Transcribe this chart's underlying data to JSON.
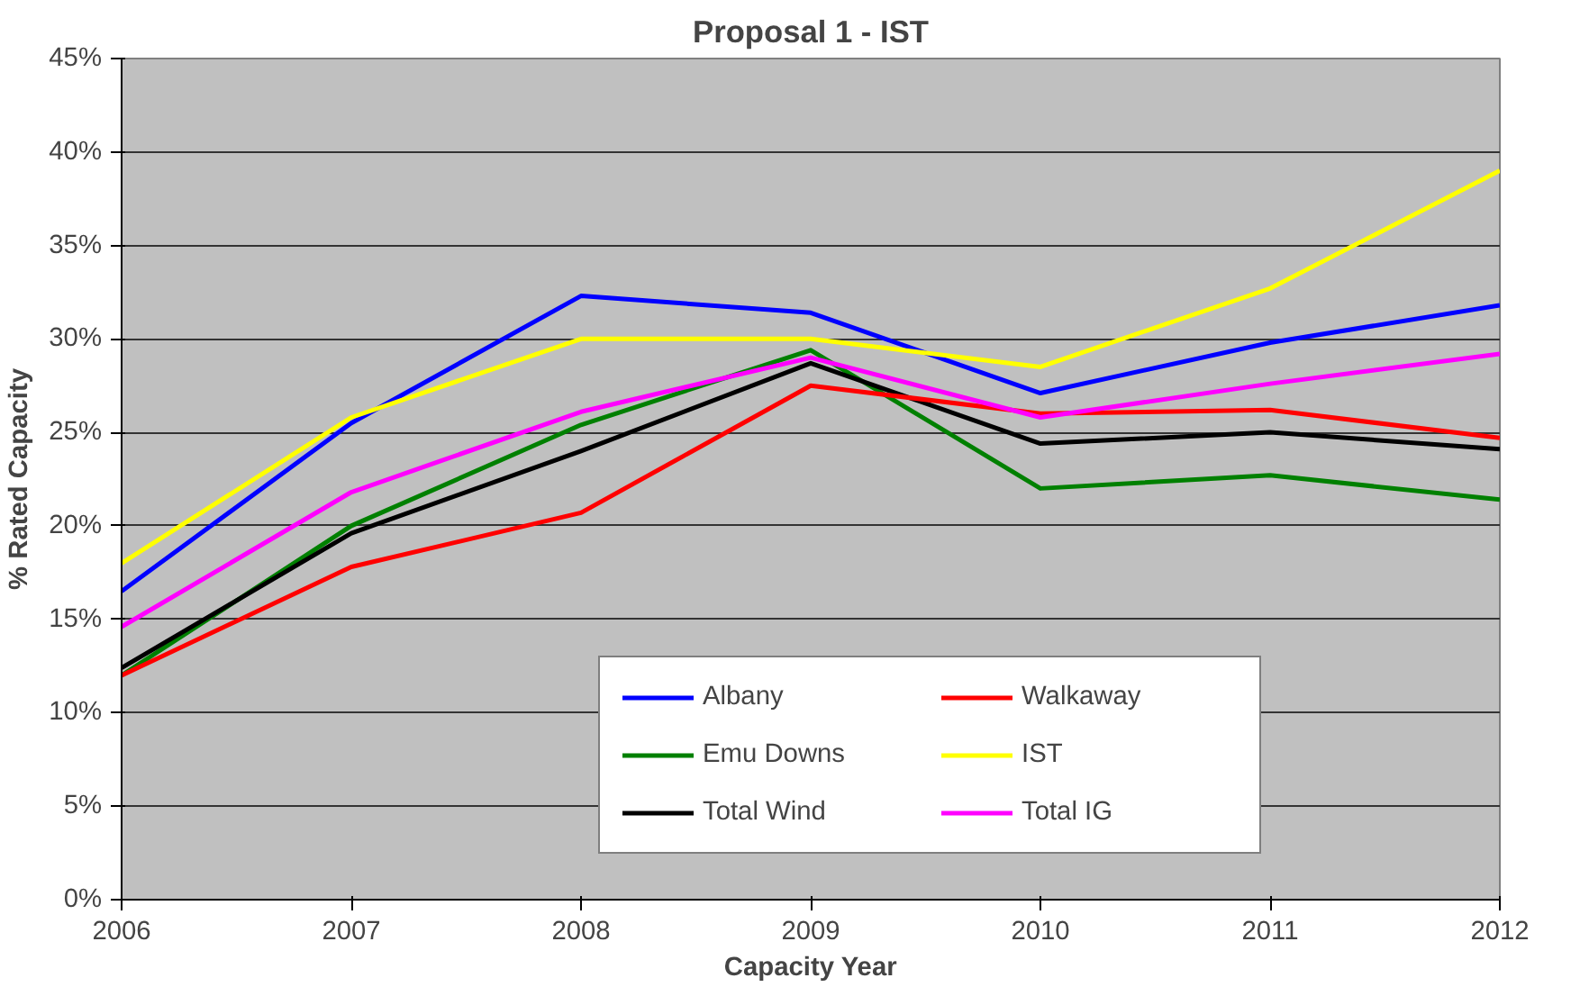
{
  "chart_data": {
    "type": "line",
    "title": "Proposal 1 - IST",
    "xlabel": "Capacity Year",
    "ylabel": "% Rated Capacity",
    "x": [
      2006,
      2007,
      2008,
      2009,
      2010,
      2011,
      2012
    ],
    "xlim": [
      2006,
      2012
    ],
    "xticks": [
      2006,
      2007,
      2008,
      2009,
      2010,
      2011,
      2012
    ],
    "ylim": [
      0,
      45
    ],
    "yticks": [
      {
        "value": 0,
        "label": "0%"
      },
      {
        "value": 5,
        "label": "5%"
      },
      {
        "value": 10,
        "label": "10%"
      },
      {
        "value": 15,
        "label": "15%"
      },
      {
        "value": 20,
        "label": "20%"
      },
      {
        "value": 25,
        "label": "25%"
      },
      {
        "value": 30,
        "label": "30%"
      },
      {
        "value": 35,
        "label": "35%"
      },
      {
        "value": 40,
        "label": "40%"
      },
      {
        "value": 45,
        "label": "45%"
      }
    ],
    "grid": "y",
    "legend": "bottom",
    "marker": "none",
    "line_style": "solid",
    "series": [
      {
        "name": "Albany",
        "color": "#0000ff",
        "values": [
          16.5,
          25.5,
          32.3,
          31.4,
          27.1,
          29.8,
          31.8
        ]
      },
      {
        "name": "Emu Downs",
        "color": "#008000",
        "values": [
          12.0,
          20.0,
          25.4,
          29.4,
          22.0,
          22.7,
          21.4
        ]
      },
      {
        "name": "Total Wind",
        "color": "#000000",
        "values": [
          12.4,
          19.6,
          24.0,
          28.7,
          24.4,
          25.0,
          24.1
        ]
      },
      {
        "name": "Walkaway",
        "color": "#ff0000",
        "values": [
          12.0,
          17.8,
          20.7,
          27.5,
          26.0,
          26.2,
          24.7
        ]
      },
      {
        "name": "IST",
        "color": "#ffff00",
        "values": [
          18.0,
          25.8,
          30.0,
          30.0,
          28.5,
          32.7,
          39.0
        ]
      },
      {
        "name": "Total IG",
        "color": "#ff00ff",
        "values": [
          14.6,
          21.8,
          26.1,
          29.0,
          25.8,
          27.6,
          29.2
        ]
      }
    ]
  }
}
